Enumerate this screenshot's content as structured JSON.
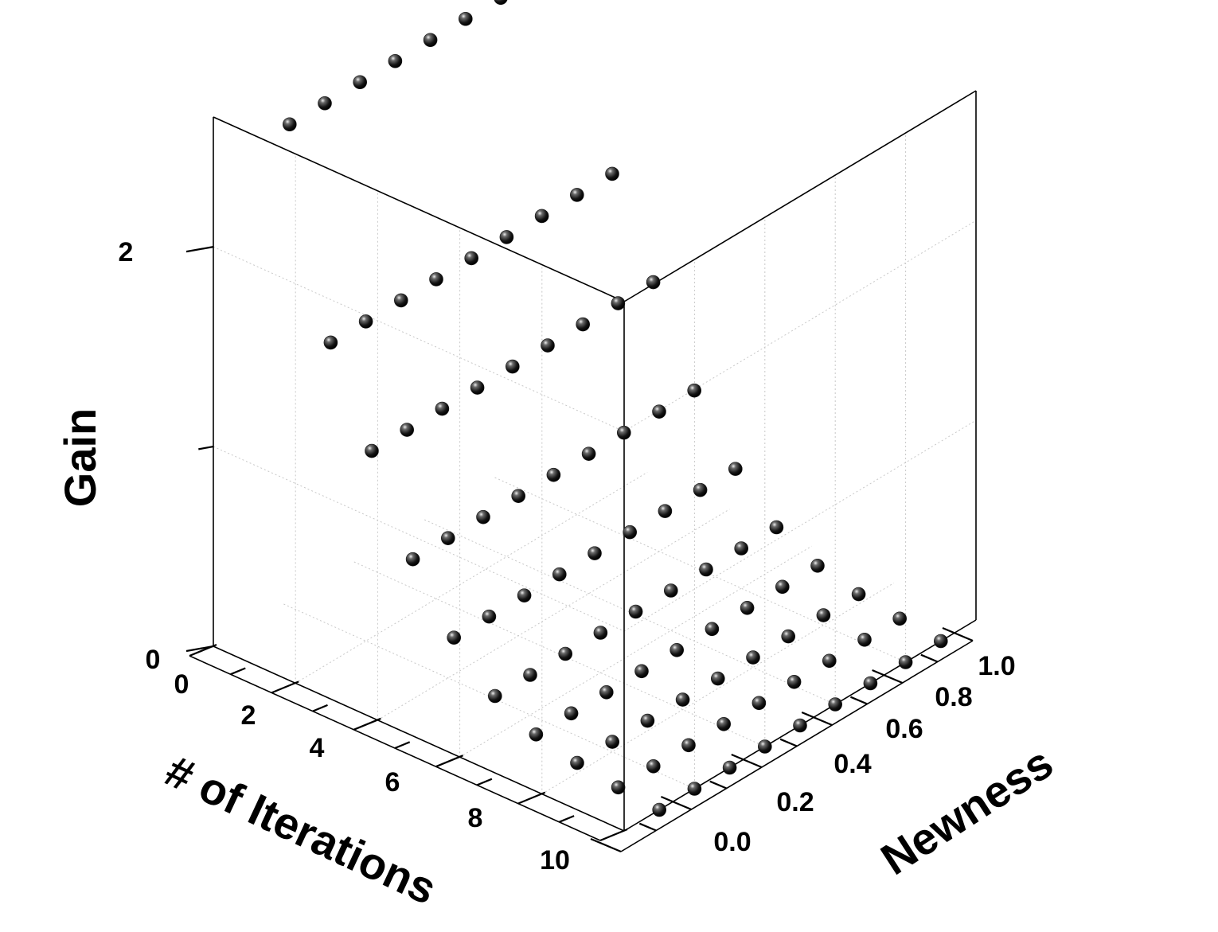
{
  "chart_data": {
    "type": "scatter",
    "projection": "3d",
    "xlabel": "# of Iterations",
    "ylabel": "Newness",
    "zlabel": "Gain",
    "xlim": [
      0,
      10
    ],
    "ylim": [
      0,
      1.0
    ],
    "zlim": [
      0,
      2.65
    ],
    "x_ticks": [
      "0",
      "2",
      "4",
      "6",
      "8",
      "10"
    ],
    "y_ticks": [
      "0.0",
      "0.2",
      "0.4",
      "0.6",
      "0.8",
      "1.0"
    ],
    "z_ticks": [
      "0",
      "2"
    ],
    "grid": true,
    "marker_color": "#1a1a1a",
    "rows": [
      {
        "iterations": 1,
        "newness": [
          0.1,
          0.2,
          0.3,
          0.4,
          0.5,
          0.6,
          0.7,
          0.8,
          0.9
        ],
        "gain": 2.6
      },
      {
        "iterations": 2,
        "newness": [
          0.1,
          0.2,
          0.3,
          0.4,
          0.5,
          0.6,
          0.7,
          0.8,
          0.9
        ],
        "gain": 1.6
      },
      {
        "iterations": 3,
        "newness": [
          0.1,
          0.2,
          0.3,
          0.4,
          0.5,
          0.6,
          0.7,
          0.8,
          0.9
        ],
        "gain": 1.15
      },
      {
        "iterations": 4,
        "newness": [
          0.1,
          0.2,
          0.3,
          0.4,
          0.5,
          0.6,
          0.7,
          0.8,
          0.9
        ],
        "gain": 0.7
      },
      {
        "iterations": 5,
        "newness": [
          0.1,
          0.2,
          0.3,
          0.4,
          0.5,
          0.6,
          0.7,
          0.8,
          0.9
        ],
        "gain": 0.4
      },
      {
        "iterations": 6,
        "newness": [
          0.1,
          0.2,
          0.3,
          0.4,
          0.5,
          0.6,
          0.7,
          0.8,
          0.9
        ],
        "gain": 0.2
      },
      {
        "iterations": 7,
        "newness": [
          0.1,
          0.2,
          0.3,
          0.4,
          0.5,
          0.6,
          0.7,
          0.8,
          0.9
        ],
        "gain": 0.1
      },
      {
        "iterations": 8,
        "newness": [
          0.1,
          0.2,
          0.3,
          0.4,
          0.5,
          0.6,
          0.7,
          0.8,
          0.9
        ],
        "gain": 0.05
      },
      {
        "iterations": 9,
        "newness": [
          0.1,
          0.2,
          0.3,
          0.4,
          0.5,
          0.6,
          0.7,
          0.8,
          0.9
        ],
        "gain": 0.02
      },
      {
        "iterations": 10,
        "newness": [
          0.1,
          0.2,
          0.3,
          0.4,
          0.5,
          0.6,
          0.7,
          0.8,
          0.9
        ],
        "gain": 0.0
      }
    ]
  }
}
